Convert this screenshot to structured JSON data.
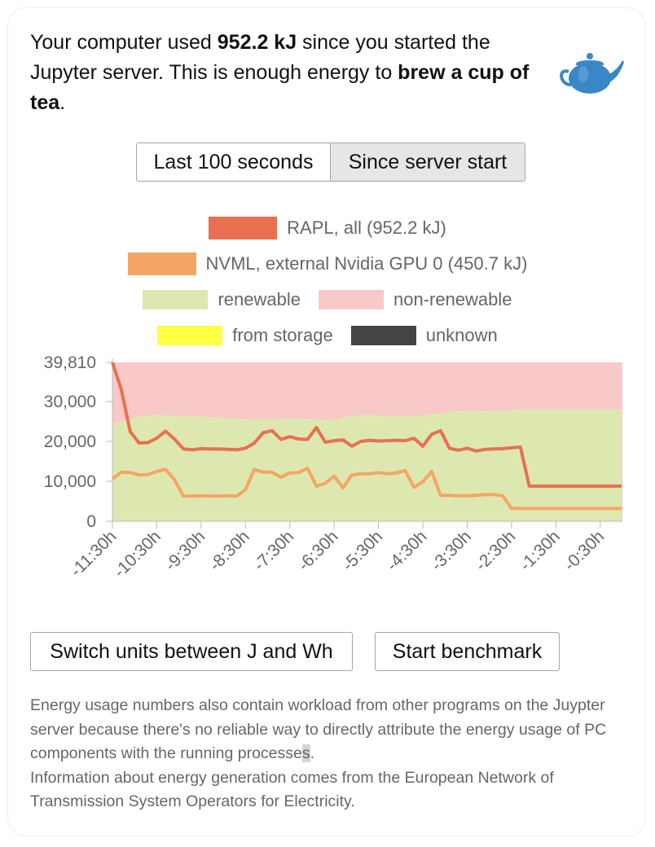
{
  "summary": {
    "prefix": "Your computer used ",
    "energy": "952.2 kJ",
    "middle": " since you started the Jupyter server. This is enough energy to ",
    "comparison": "brew a cup of tea",
    "suffix": "."
  },
  "toggle": {
    "option1": "Last 100 seconds",
    "option2": "Since server start",
    "selected": "Since server start"
  },
  "legend": {
    "rapl": "RAPL, all (952.2 kJ)",
    "nvml": "NVML, external Nvidia GPU 0 (450.7 kJ)",
    "renewable": "renewable",
    "nonrenewable": "non-renewable",
    "storage": "from storage",
    "unknown": "unknown"
  },
  "colors": {
    "rapl": "#e87050",
    "nvml": "#f5a565",
    "renewable": "#dde8b0",
    "nonrenewable": "#f9c8c8",
    "storage": "#ffff44",
    "unknown": "#444444",
    "teapot": "#3a87c8"
  },
  "buttons": {
    "switch_units": "Switch units between J and Wh",
    "benchmark": "Start benchmark"
  },
  "notes": {
    "line1_main": "Energy usage numbers also contain workload from other programs on the Juypter server because there's no reliable way to directly attribute the energy usage of PC components with the running processe",
    "line1_sel": "s",
    "line1_end": ".",
    "line2": "Information about energy generation comes from the European Network of Transmission System Operators for Electricity."
  },
  "chart_data": {
    "type": "area",
    "ylim": [
      0,
      39810
    ],
    "y_ticks": [
      "39,810",
      "30,000",
      "20,000",
      "10,000",
      "0"
    ],
    "y_tick_values": [
      39810,
      30000,
      20000,
      10000,
      0
    ],
    "x_ticks": [
      "-11:30h",
      "-10:30h",
      "-9:30h",
      "-8:30h",
      "-7:30h",
      "-6:30h",
      "-5:30h",
      "-4:30h",
      "-3:30h",
      "-2:30h",
      "-1:30h",
      "-0:30h"
    ],
    "x_hours": [
      -11.5,
      -11.3,
      -11.1,
      -10.9,
      -10.7,
      -10.5,
      -10.3,
      -10.1,
      -9.9,
      -9.7,
      -9.5,
      -9.3,
      -9.1,
      -8.9,
      -8.7,
      -8.5,
      -8.3,
      -8.1,
      -7.9,
      -7.7,
      -7.5,
      -7.3,
      -7.1,
      -6.9,
      -6.7,
      -6.5,
      -6.3,
      -6.1,
      -5.9,
      -5.7,
      -5.5,
      -5.3,
      -5.1,
      -4.9,
      -4.7,
      -4.5,
      -4.3,
      -4.1,
      -3.9,
      -3.7,
      -3.5,
      -3.3,
      -3.1,
      -2.9,
      -2.7,
      -2.5,
      -2.3,
      -2.1,
      -1.9,
      -1.7,
      -1.5,
      -1.3,
      -1.1,
      -0.9,
      -0.7,
      -0.5,
      -0.3,
      -0.02
    ],
    "series": [
      {
        "name": "RAPL, all (952.2 kJ)",
        "values": [
          39810,
          33000,
          22500,
          19600,
          19700,
          20800,
          22600,
          20600,
          18100,
          17900,
          18200,
          18100,
          18100,
          18000,
          17900,
          18300,
          19600,
          22200,
          22700,
          20500,
          21200,
          20600,
          20500,
          23500,
          19800,
          20200,
          20400,
          18800,
          20000,
          20300,
          20100,
          20200,
          20300,
          20200,
          20800,
          18800,
          21800,
          22700,
          18300,
          17800,
          18300,
          17600,
          18000,
          18100,
          18200,
          18400,
          18600,
          8800,
          8800,
          8800,
          8800,
          8800,
          8800,
          8800,
          8800,
          8800,
          8800,
          8800
        ]
      },
      {
        "name": "NVML, external Nvidia GPU 0 (450.7 kJ)",
        "values": [
          10600,
          12300,
          12200,
          11600,
          11700,
          12500,
          13000,
          10400,
          6300,
          6300,
          6400,
          6300,
          6300,
          6400,
          6300,
          7900,
          13000,
          12300,
          12300,
          11000,
          12100,
          12200,
          13300,
          8800,
          9500,
          11300,
          8400,
          11600,
          11900,
          11900,
          12200,
          11900,
          12100,
          12700,
          8500,
          9900,
          12500,
          6500,
          6500,
          6400,
          6400,
          6500,
          6700,
          6700,
          6400,
          3200,
          3200,
          3200,
          3200,
          3200,
          3200,
          3200,
          3200,
          3200,
          3200,
          3200,
          3200,
          3200
        ]
      },
      {
        "name": "renewable",
        "values": [
          24500,
          25000,
          25500,
          26400,
          26600,
          26700,
          26600,
          26500,
          26500,
          26400,
          26200,
          26100,
          26000,
          25900,
          25800,
          25600,
          25600,
          25500,
          25500,
          25700,
          25800,
          25700,
          25600,
          25600,
          25400,
          25500,
          26000,
          26400,
          26600,
          26700,
          26600,
          26500,
          26500,
          26500,
          26400,
          26600,
          26800,
          27100,
          27400,
          27600,
          27700,
          27700,
          27600,
          27700,
          27800,
          27900,
          28000,
          28000,
          28000,
          28000,
          28000,
          28000,
          28000,
          28000,
          28000,
          28000,
          28000,
          28000
        ]
      },
      {
        "name": "non-renewable",
        "values": [
          39810,
          39810,
          39810,
          39810,
          39810,
          39810,
          39810,
          39810,
          39810,
          39810,
          39810,
          39810,
          39810,
          39810,
          39810,
          39810,
          39810,
          39810,
          39810,
          39810,
          39810,
          39810,
          39810,
          39810,
          39810,
          39810,
          39810,
          39810,
          39810,
          39810,
          39810,
          39810,
          39810,
          39810,
          39810,
          39810,
          39810,
          39810,
          39810,
          39810,
          39810,
          39810,
          39810,
          39810,
          39810,
          39810,
          39810,
          39810,
          39810,
          39810,
          39810,
          39810,
          39810,
          39810,
          39810,
          39810,
          39810,
          39810
        ]
      }
    ],
    "grid": false,
    "legend_position": "top"
  }
}
